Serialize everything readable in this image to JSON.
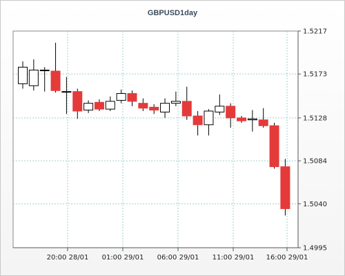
{
  "chart_data": {
    "type": "candlestick",
    "title": "GBPUSD1day",
    "ylim": [
      1.4995,
      1.5217
    ],
    "y_ticks": [
      "1.5217",
      "1.5173",
      "1.5128",
      "1.5084",
      "1.5040",
      "1.4995"
    ],
    "x_ticks": [
      "20:00 28/01",
      "01:00 29/01",
      "06:00 29/01",
      "11:00 29/01",
      "16:00 29/01"
    ],
    "grid": true,
    "colors": {
      "up": "#ffffff",
      "down": "#e53a3a",
      "wick": "#000000",
      "grid": "#9ccfcf"
    },
    "candles": [
      {
        "open": 1.5163,
        "high": 1.5186,
        "low": 1.5158,
        "close": 1.518
      },
      {
        "open": 1.5161,
        "high": 1.5188,
        "low": 1.5156,
        "close": 1.5177
      },
      {
        "open": 1.5177,
        "high": 1.518,
        "low": 1.5155,
        "close": 1.5177
      },
      {
        "open": 1.5176,
        "high": 1.5205,
        "low": 1.5154,
        "close": 1.5156
      },
      {
        "open": 1.5155,
        "high": 1.517,
        "low": 1.5132,
        "close": 1.5155
      },
      {
        "open": 1.5155,
        "high": 1.5158,
        "low": 1.5127,
        "close": 1.5135
      },
      {
        "open": 1.5136,
        "high": 1.5146,
        "low": 1.5133,
        "close": 1.5143
      },
      {
        "open": 1.5144,
        "high": 1.5147,
        "low": 1.5135,
        "close": 1.5137
      },
      {
        "open": 1.5137,
        "high": 1.515,
        "low": 1.5135,
        "close": 1.5145
      },
      {
        "open": 1.5146,
        "high": 1.5157,
        "low": 1.5143,
        "close": 1.5153
      },
      {
        "open": 1.5153,
        "high": 1.5156,
        "low": 1.514,
        "close": 1.5145
      },
      {
        "open": 1.5143,
        "high": 1.5148,
        "low": 1.5135,
        "close": 1.5138
      },
      {
        "open": 1.5139,
        "high": 1.5142,
        "low": 1.5132,
        "close": 1.5136
      },
      {
        "open": 1.5134,
        "high": 1.5148,
        "low": 1.5128,
        "close": 1.5143
      },
      {
        "open": 1.5143,
        "high": 1.5155,
        "low": 1.514,
        "close": 1.5145
      },
      {
        "open": 1.5145,
        "high": 1.516,
        "low": 1.5126,
        "close": 1.513
      },
      {
        "open": 1.513,
        "high": 1.5135,
        "low": 1.511,
        "close": 1.5121
      },
      {
        "open": 1.5121,
        "high": 1.5137,
        "low": 1.511,
        "close": 1.5135
      },
      {
        "open": 1.5134,
        "high": 1.5152,
        "low": 1.5131,
        "close": 1.514
      },
      {
        "open": 1.514,
        "high": 1.5143,
        "low": 1.5118,
        "close": 1.5128
      },
      {
        "open": 1.5128,
        "high": 1.513,
        "low": 1.5123,
        "close": 1.5125
      },
      {
        "open": 1.5126,
        "high": 1.5136,
        "low": 1.5114,
        "close": 1.5127
      },
      {
        "open": 1.5126,
        "high": 1.5138,
        "low": 1.5118,
        "close": 1.512
      },
      {
        "open": 1.512,
        "high": 1.5123,
        "low": 1.5076,
        "close": 1.5078
      },
      {
        "open": 1.5078,
        "high": 1.5086,
        "low": 1.5028,
        "close": 1.5035
      }
    ]
  }
}
